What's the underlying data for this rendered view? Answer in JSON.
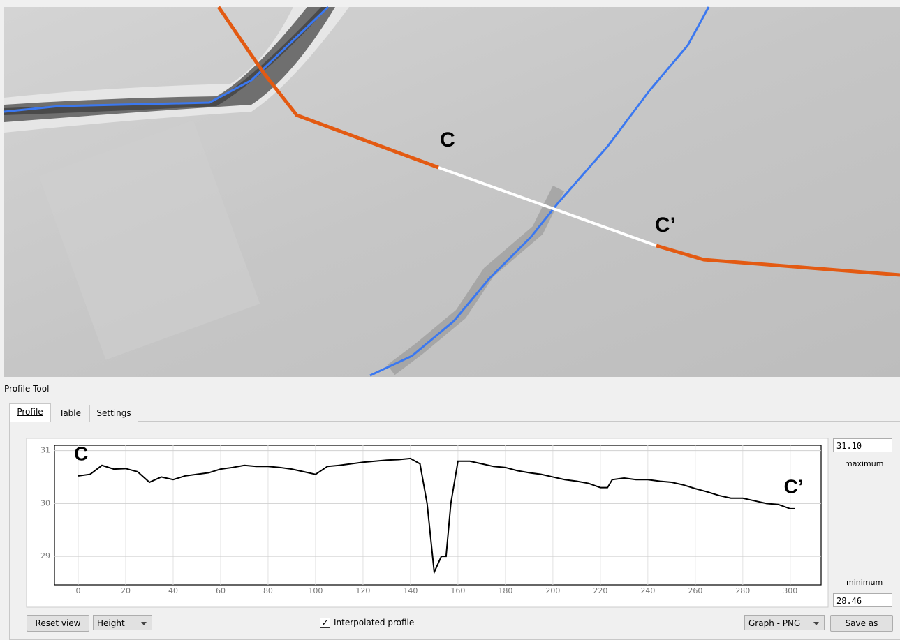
{
  "map": {
    "labels": [
      "C",
      "C’"
    ]
  },
  "panel": {
    "title": "Profile Tool",
    "tabs": [
      "Profile",
      "Table",
      "Settings"
    ],
    "maximum_value": "31.10",
    "maximum_label": "maximum",
    "minimum_value": "28.46",
    "minimum_label": "minimum",
    "reset_button": "Reset view",
    "mode_combo": "Height",
    "checkbox_label": "Interpolated profile",
    "export_combo": "Graph - PNG",
    "save_button": "Save as"
  },
  "chart_data": {
    "type": "line",
    "color": "#000000",
    "grid": true,
    "annotations": [
      "C",
      "C’"
    ],
    "x": [
      0,
      5,
      10,
      15,
      20,
      25,
      30,
      35,
      40,
      45,
      50,
      55,
      60,
      65,
      70,
      75,
      80,
      85,
      90,
      95,
      100,
      105,
      110,
      115,
      120,
      125,
      130,
      135,
      140,
      144,
      147,
      150,
      153,
      155,
      157,
      160,
      165,
      170,
      175,
      180,
      185,
      190,
      195,
      200,
      205,
      210,
      215,
      220,
      223,
      225,
      230,
      235,
      240,
      245,
      250,
      255,
      260,
      265,
      270,
      275,
      280,
      285,
      290,
      295,
      300,
      302
    ],
    "values": [
      30.52,
      30.55,
      30.72,
      30.65,
      30.66,
      30.6,
      30.4,
      30.5,
      30.45,
      30.52,
      30.55,
      30.58,
      30.65,
      30.68,
      30.72,
      30.7,
      30.7,
      30.68,
      30.65,
      30.6,
      30.55,
      30.7,
      30.72,
      30.75,
      30.78,
      30.8,
      30.82,
      30.83,
      30.85,
      30.75,
      30.0,
      28.7,
      29.0,
      29.0,
      30.0,
      30.8,
      30.8,
      30.75,
      30.7,
      30.68,
      30.62,
      30.58,
      30.55,
      30.5,
      30.45,
      30.42,
      30.38,
      30.3,
      30.3,
      30.45,
      30.48,
      30.45,
      30.45,
      30.42,
      30.4,
      30.35,
      30.28,
      30.22,
      30.15,
      30.1,
      30.1,
      30.05,
      30.0,
      29.98,
      29.9,
      29.9
    ],
    "xlim": [
      -10,
      313
    ],
    "ylim": [
      28.46,
      31.1
    ],
    "xticks": [
      0,
      20,
      40,
      60,
      80,
      100,
      120,
      140,
      160,
      180,
      200,
      220,
      240,
      260,
      280,
      300
    ],
    "yticks": [
      29,
      30,
      31
    ]
  }
}
